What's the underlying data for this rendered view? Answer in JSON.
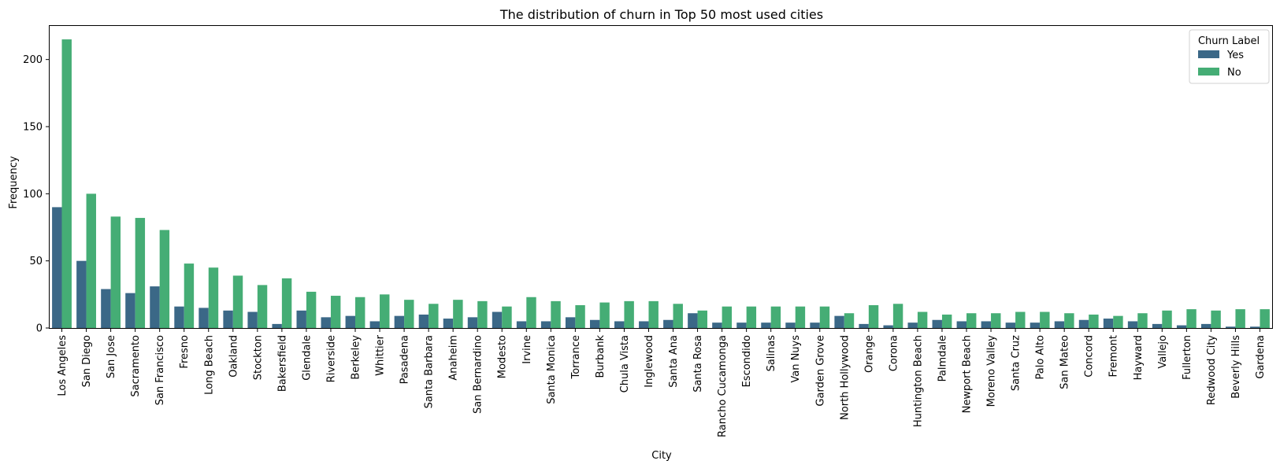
{
  "chart_data": {
    "type": "bar",
    "title": "The distribution of churn in Top 50 most used cities",
    "xlabel": "City",
    "ylabel": "Frequency",
    "ylim": [
      0,
      225
    ],
    "yticks": [
      0,
      50,
      100,
      150,
      200
    ],
    "grid": false,
    "legend": {
      "title": "Churn Label",
      "placement": "top-right"
    },
    "categories": [
      "Los Angeles",
      "San Diego",
      "San Jose",
      "Sacramento",
      "San Francisco",
      "Fresno",
      "Long Beach",
      "Oakland",
      "Stockton",
      "Bakersfield",
      "Glendale",
      "Riverside",
      "Berkeley",
      "Whittier",
      "Pasadena",
      "Santa Barbara",
      "Anaheim",
      "San Bernardino",
      "Modesto",
      "Irvine",
      "Santa Monica",
      "Torrance",
      "Burbank",
      "Chula Vista",
      "Inglewood",
      "Santa Ana",
      "Santa Rosa",
      "Rancho Cucamonga",
      "Escondido",
      "Salinas",
      "Van Nuys",
      "Garden Grove",
      "North Hollywood",
      "Orange",
      "Corona",
      "Huntington Beach",
      "Palmdale",
      "Newport Beach",
      "Moreno Valley",
      "Santa Cruz",
      "Palo Alto",
      "San Mateo",
      "Concord",
      "Fremont",
      "Hayward",
      "Vallejo",
      "Fullerton",
      "Redwood City",
      "Beverly Hills",
      "Gardena"
    ],
    "series": [
      {
        "name": "Yes",
        "color": "#3b6887",
        "values": [
          90,
          50,
          29,
          26,
          31,
          16,
          15,
          13,
          12,
          3,
          13,
          8,
          9,
          5,
          9,
          10,
          7,
          8,
          12,
          5,
          5,
          8,
          6,
          5,
          5,
          6,
          11,
          4,
          4,
          4,
          4,
          4,
          9,
          3,
          2,
          4,
          6,
          5,
          5,
          4,
          4,
          5,
          6,
          7,
          5,
          3,
          2,
          3,
          1,
          1
        ]
      },
      {
        "name": "No",
        "color": "#45ad75",
        "values": [
          215,
          100,
          83,
          82,
          73,
          48,
          45,
          39,
          32,
          37,
          27,
          24,
          23,
          25,
          21,
          18,
          21,
          20,
          16,
          23,
          20,
          17,
          19,
          20,
          20,
          18,
          13,
          16,
          16,
          16,
          16,
          16,
          11,
          17,
          18,
          12,
          10,
          11,
          11,
          12,
          12,
          11,
          10,
          9,
          11,
          13,
          14,
          13,
          14,
          14
        ]
      }
    ]
  }
}
